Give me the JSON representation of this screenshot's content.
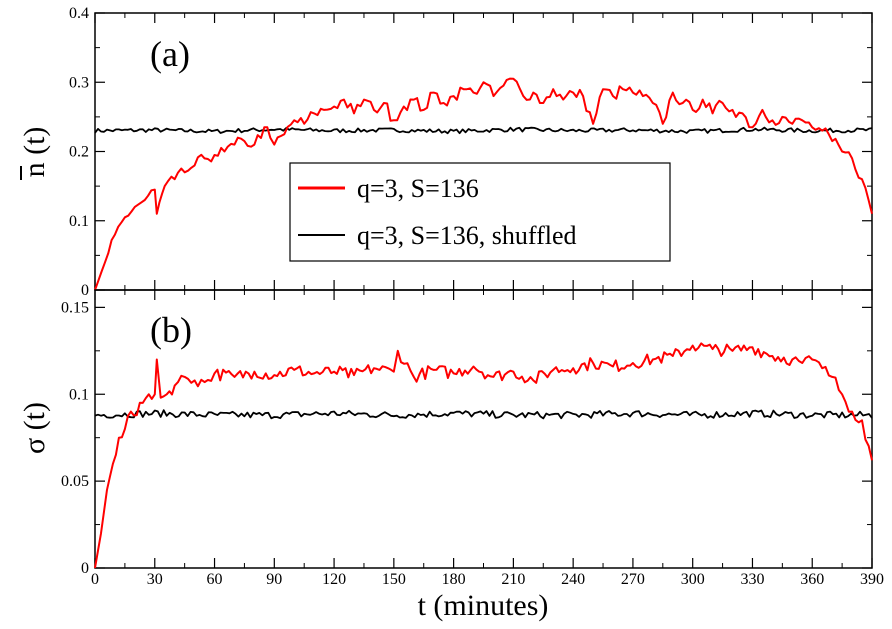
{
  "chart_data": [
    {
      "type": "line",
      "panel_label": "(a)",
      "ylabel": "n (t)",
      "ylabel_has_overbar": true,
      "xlim": [
        0,
        390
      ],
      "ylim": [
        0,
        0.4
      ],
      "xticks": [
        0,
        30,
        60,
        90,
        120,
        150,
        180,
        210,
        240,
        270,
        300,
        330,
        360,
        390
      ],
      "yticks": [
        "0",
        "0.1",
        "0.2",
        "0.3",
        "0.4"
      ],
      "yticks_values": [
        0,
        0.1,
        0.2,
        0.3,
        0.4
      ],
      "legend_position": "center",
      "series": [
        {
          "name": "q=3, S=136",
          "color": "#ff0000",
          "x": [
            0,
            5,
            10,
            15,
            20,
            25,
            30,
            31,
            35,
            40,
            45,
            50,
            55,
            60,
            65,
            70,
            75,
            80,
            85,
            88,
            90,
            95,
            100,
            105,
            110,
            115,
            120,
            125,
            130,
            135,
            140,
            145,
            150,
            155,
            160,
            165,
            170,
            175,
            180,
            185,
            190,
            195,
            200,
            205,
            210,
            215,
            220,
            225,
            230,
            235,
            240,
            245,
            250,
            255,
            260,
            265,
            270,
            275,
            280,
            285,
            290,
            295,
            300,
            305,
            310,
            315,
            320,
            325,
            330,
            335,
            340,
            345,
            350,
            355,
            360,
            365,
            370,
            375,
            380,
            385,
            390
          ],
          "y": [
            0.0,
            0.04,
            0.08,
            0.105,
            0.12,
            0.13,
            0.145,
            0.11,
            0.15,
            0.16,
            0.17,
            0.18,
            0.19,
            0.195,
            0.2,
            0.21,
            0.215,
            0.21,
            0.235,
            0.22,
            0.21,
            0.225,
            0.245,
            0.24,
            0.255,
            0.26,
            0.265,
            0.275,
            0.255,
            0.275,
            0.26,
            0.27,
            0.245,
            0.265,
            0.275,
            0.26,
            0.285,
            0.27,
            0.28,
            0.29,
            0.285,
            0.3,
            0.28,
            0.295,
            0.305,
            0.28,
            0.285,
            0.27,
            0.29,
            0.275,
            0.285,
            0.28,
            0.24,
            0.29,
            0.28,
            0.29,
            0.285,
            0.28,
            0.27,
            0.24,
            0.285,
            0.27,
            0.26,
            0.275,
            0.255,
            0.27,
            0.26,
            0.255,
            0.235,
            0.26,
            0.245,
            0.25,
            0.24,
            0.245,
            0.235,
            0.23,
            0.215,
            0.2,
            0.19,
            0.16,
            0.11
          ]
        },
        {
          "name": "q=3, S=136, shuffled",
          "color": "#000000",
          "x": [
            0,
            30,
            60,
            90,
            120,
            150,
            180,
            210,
            240,
            270,
            300,
            330,
            360,
            390
          ],
          "y": [
            0.23,
            0.231,
            0.229,
            0.232,
            0.23,
            0.231,
            0.229,
            0.232,
            0.23,
            0.231,
            0.229,
            0.232,
            0.23,
            0.231
          ],
          "noise": 0.003
        }
      ]
    },
    {
      "type": "line",
      "panel_label": "(b)",
      "ylabel": "σ (t)",
      "xlabel": "t (minutes)",
      "xlim": [
        0,
        390
      ],
      "ylim": [
        0,
        0.16
      ],
      "xticks": [
        0,
        30,
        60,
        90,
        120,
        150,
        180,
        210,
        240,
        270,
        300,
        330,
        360,
        390
      ],
      "xtick_labels": [
        "0",
        "30",
        "60",
        "90",
        "120",
        "150",
        "180",
        "210",
        "240",
        "270",
        "300",
        "330",
        "360",
        "390"
      ],
      "yticks": [
        "0",
        "0.05",
        "0.1",
        "0.15"
      ],
      "yticks_values": [
        0,
        0.05,
        0.1,
        0.15
      ],
      "series": [
        {
          "name": "q=3, S=136",
          "color": "#ff0000",
          "x": [
            0,
            3,
            6,
            9,
            12,
            15,
            18,
            21,
            24,
            27,
            30,
            31,
            33,
            36,
            40,
            45,
            50,
            55,
            60,
            70,
            80,
            90,
            100,
            110,
            120,
            130,
            140,
            150,
            152,
            160,
            170,
            180,
            190,
            200,
            210,
            220,
            230,
            240,
            250,
            260,
            270,
            280,
            290,
            300,
            310,
            320,
            330,
            340,
            350,
            355,
            360,
            365,
            370,
            375,
            380,
            385,
            390
          ],
          "y": [
            0.0,
            0.02,
            0.045,
            0.06,
            0.075,
            0.08,
            0.09,
            0.088,
            0.095,
            0.1,
            0.1,
            0.12,
            0.098,
            0.1,
            0.105,
            0.11,
            0.108,
            0.107,
            0.112,
            0.11,
            0.113,
            0.111,
            0.114,
            0.112,
            0.113,
            0.111,
            0.115,
            0.113,
            0.125,
            0.11,
            0.114,
            0.112,
            0.116,
            0.11,
            0.113,
            0.108,
            0.114,
            0.115,
            0.118,
            0.116,
            0.118,
            0.12,
            0.122,
            0.128,
            0.126,
            0.125,
            0.127,
            0.122,
            0.12,
            0.118,
            0.12,
            0.115,
            0.11,
            0.1,
            0.09,
            0.085,
            0.062
          ]
        },
        {
          "name": "q=3, S=136, shuffled",
          "color": "#000000",
          "x": [
            0,
            30,
            60,
            90,
            120,
            150,
            180,
            210,
            240,
            270,
            300,
            330,
            360,
            390
          ],
          "y": [
            0.088,
            0.089,
            0.088,
            0.088,
            0.089,
            0.088,
            0.089,
            0.088,
            0.088,
            0.089,
            0.088,
            0.089,
            0.088,
            0.088
          ],
          "noise": 0.002
        }
      ]
    }
  ]
}
